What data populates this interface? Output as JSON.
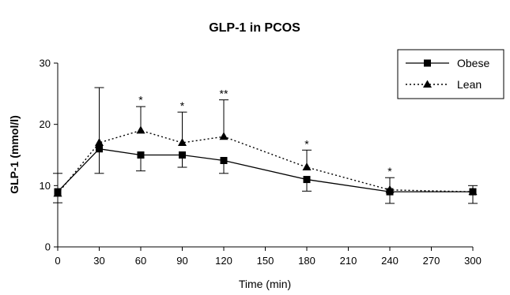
{
  "chart_data": {
    "type": "line",
    "title": "GLP-1 in PCOS",
    "xlabel": "Time (min)",
    "ylabel": "GLP-1 (mmol/l)",
    "xlim": [
      0,
      300
    ],
    "ylim": [
      0,
      30
    ],
    "xticks": [
      "0",
      "30",
      "60",
      "90",
      "120",
      "150",
      "180",
      "210",
      "240",
      "270",
      "300"
    ],
    "yticks": [
      "0",
      "10",
      "20",
      "30"
    ],
    "grid": false,
    "legend_position": "top-right",
    "series": [
      {
        "name": "Obese",
        "marker": "square",
        "line_style": "solid",
        "x": [
          0,
          30,
          60,
          90,
          120,
          180,
          240,
          300
        ],
        "y": [
          9.0,
          16.0,
          15.0,
          15.0,
          14.1,
          11.0,
          9.0,
          9.0
        ],
        "error": [
          3.0,
          4.0,
          2.6,
          2.0,
          2.1,
          1.9,
          1.9,
          1.9
        ]
      },
      {
        "name": "Lean",
        "marker": "triangle",
        "line_style": "dotted",
        "x": [
          0,
          30,
          60,
          90,
          120,
          180,
          240,
          300
        ],
        "y": [
          8.7,
          17.0,
          19.0,
          17.0,
          18.0,
          13.0,
          9.3,
          9.0
        ],
        "error": [
          1.5,
          9.0,
          3.9,
          5.0,
          6.0,
          2.8,
          2.0,
          1.0
        ]
      }
    ],
    "annotations": [
      {
        "x": 60,
        "y": 23.0,
        "text": "*"
      },
      {
        "x": 90,
        "y": 22.0,
        "text": "*"
      },
      {
        "x": 120,
        "y": 24.0,
        "text": "**"
      },
      {
        "x": 180,
        "y": 15.8,
        "text": "*"
      },
      {
        "x": 240,
        "y": 11.3,
        "text": "*"
      }
    ]
  }
}
